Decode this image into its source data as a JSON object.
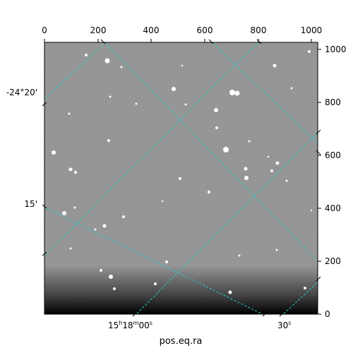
{
  "plot": {
    "xlabel": "pos.eq.ra",
    "top_ticks": [
      "0",
      "200",
      "400",
      "600",
      "800",
      "1000"
    ],
    "right_ticks": [
      "0",
      "200",
      "400",
      "600",
      "800",
      "1000"
    ],
    "left_ticks": [
      "-24°20'",
      "15'"
    ],
    "ra_ticks": [
      {
        "h": "15",
        "m": "18",
        "s": "00",
        "label": "15h18m00s"
      },
      {
        "s": "30",
        "label": "30s"
      }
    ],
    "grid_color": "#22d3d3",
    "image_type": "grayscale astronomical sky image with stars"
  }
}
